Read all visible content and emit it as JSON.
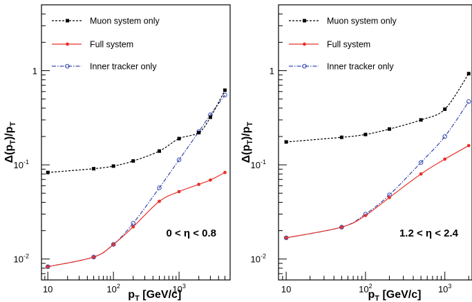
{
  "chart_data": [
    {
      "type": "line",
      "xlabel_main": "p",
      "xlabel_sub": "T",
      "xlabel_rest": " [GeV/c]",
      "ylabel_main": "Δ(p",
      "ylabel_sub1": "T",
      "ylabel_mid": ")/p",
      "ylabel_sub2": "T",
      "x_scale": "log",
      "y_scale": "log",
      "xlim": [
        8,
        6000
      ],
      "ylim": [
        0.006,
        5
      ],
      "x_ticks": [
        {
          "base": "10",
          "exp": ""
        },
        {
          "base": "10",
          "exp": "2"
        },
        {
          "base": "10",
          "exp": "3"
        }
      ],
      "y_ticks": [
        {
          "base": "10",
          "exp": "-2"
        },
        {
          "base": "10",
          "exp": "-1"
        },
        {
          "base": "1",
          "exp": ""
        }
      ],
      "legend_position": "top-left",
      "region_label": "0 < η < 0.8",
      "series": [
        {
          "name": "Muon system only",
          "color": "#000000",
          "marker": "square",
          "dash": "3,2",
          "x": [
            10,
            50,
            100,
            200,
            500,
            1000,
            2000,
            3000,
            5000
          ],
          "y": [
            0.083,
            0.091,
            0.097,
            0.11,
            0.14,
            0.19,
            0.22,
            0.32,
            0.62
          ]
        },
        {
          "name": "Full system",
          "color": "#e8312a",
          "marker": "dot",
          "dash": "",
          "x": [
            10,
            50,
            100,
            200,
            500,
            1000,
            2000,
            3000,
            5000
          ],
          "y": [
            0.0083,
            0.0105,
            0.0143,
            0.022,
            0.041,
            0.052,
            0.062,
            0.069,
            0.083
          ]
        },
        {
          "name": "Inner tracker only",
          "color": "#3447b0",
          "marker": "open-circle",
          "dash": "6,2,1.5,2",
          "x": [
            10,
            50,
            100,
            200,
            500,
            1000,
            2000,
            3000,
            5000
          ],
          "y": [
            0.0083,
            0.0105,
            0.0143,
            0.024,
            0.057,
            0.113,
            0.225,
            0.34,
            0.55
          ]
        }
      ]
    },
    {
      "type": "line",
      "xlabel_main": "p",
      "xlabel_sub": "T",
      "xlabel_rest": " [GeV/c]",
      "ylabel_main": "Δ(p",
      "ylabel_sub1": "T",
      "ylabel_mid": ")/p",
      "ylabel_sub2": "T",
      "x_scale": "log",
      "y_scale": "log",
      "xlim": [
        8,
        2200
      ],
      "ylim": [
        0.006,
        5
      ],
      "x_ticks": [
        {
          "base": "10",
          "exp": ""
        },
        {
          "base": "10",
          "exp": "2"
        },
        {
          "base": "10",
          "exp": "3"
        }
      ],
      "y_ticks": [
        {
          "base": "10",
          "exp": "-2"
        },
        {
          "base": "10",
          "exp": "-1"
        },
        {
          "base": "1",
          "exp": ""
        }
      ],
      "legend_position": "top-left",
      "region_label": "1.2 < η < 2.4",
      "series": [
        {
          "name": "Muon system only",
          "color": "#000000",
          "marker": "square",
          "dash": "3,2",
          "x": [
            10,
            50,
            100,
            200,
            500,
            1000,
            2000
          ],
          "y": [
            0.175,
            0.196,
            0.21,
            0.24,
            0.3,
            0.39,
            0.93
          ]
        },
        {
          "name": "Full system",
          "color": "#e8312a",
          "marker": "dot",
          "dash": "",
          "x": [
            10,
            50,
            100,
            200,
            500,
            1000,
            2000
          ],
          "y": [
            0.0168,
            0.0218,
            0.029,
            0.045,
            0.08,
            0.115,
            0.16
          ]
        },
        {
          "name": "Inner tracker only",
          "color": "#3447b0",
          "marker": "open-circle",
          "dash": "6,2,1.5,2",
          "x": [
            10,
            50,
            100,
            200,
            500,
            1000,
            2000
          ],
          "y": [
            0.0168,
            0.0218,
            0.03,
            0.048,
            0.106,
            0.2,
            0.47
          ]
        }
      ]
    }
  ]
}
